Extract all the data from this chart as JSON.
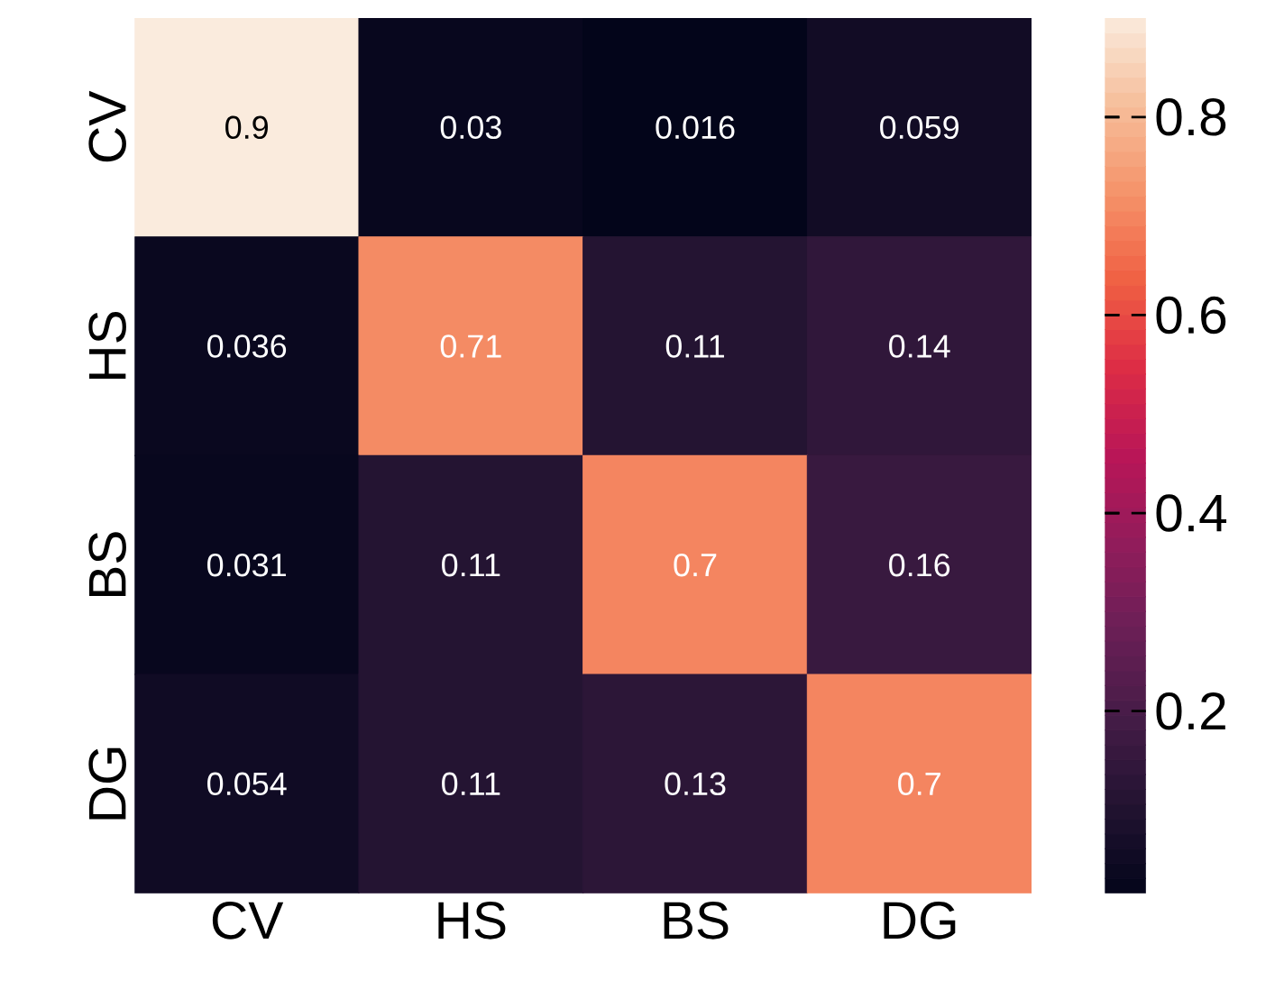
{
  "chart_data": {
    "type": "heatmap",
    "categories": [
      "CV",
      "HS",
      "BS",
      "DG"
    ],
    "y_categories": [
      "CV",
      "HS",
      "BS",
      "DG"
    ],
    "cells": [
      [
        0.9,
        0.03,
        0.016,
        0.059
      ],
      [
        0.036,
        0.71,
        0.11,
        0.14
      ],
      [
        0.031,
        0.11,
        0.7,
        0.16
      ],
      [
        0.054,
        0.11,
        0.13,
        0.7
      ]
    ],
    "clim": [
      0.016,
      0.9
    ],
    "cticks": [
      0.2,
      0.4,
      0.6,
      0.8
    ],
    "data_labels": true
  }
}
